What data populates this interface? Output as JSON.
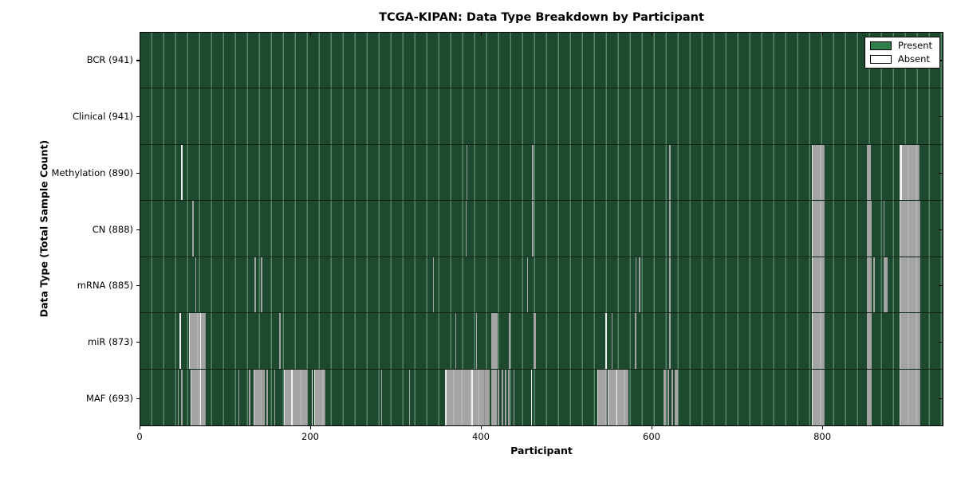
{
  "chart_data": {
    "type": "heatmap",
    "title": "TCGA-KIPAN: Data Type Breakdown by Participant",
    "xlabel": "Participant",
    "ylabel": "Data Type (Total Sample Count)",
    "x_axis": {
      "min": 0,
      "max": 942,
      "ticks": [
        0,
        200,
        400,
        600,
        800
      ]
    },
    "legend": {
      "position": "upper right",
      "entries": [
        {
          "label": "Present",
          "color": "#2e7d4a"
        },
        {
          "label": "Absent",
          "color": "#ffffff"
        }
      ]
    },
    "colors": {
      "present_fill": "#1d4a2e",
      "present_gridline": "#a5d6b6",
      "absent_gray": "#a7a7a7",
      "absent_white": "#f0f0f0",
      "axis": "#000000",
      "figure_background": "#ffffff"
    },
    "rows": [
      {
        "label": "BCR (941)",
        "data_type": "BCR",
        "sample_count": 941,
        "absent_ranges": []
      },
      {
        "label": "Clinical (941)",
        "data_type": "Clinical",
        "sample_count": 941,
        "absent_ranges": []
      },
      {
        "label": "Methylation (890)",
        "data_type": "Methylation",
        "sample_count": 890,
        "absent_ranges": [
          {
            "start": 48,
            "end": 50,
            "shade": "white"
          },
          {
            "start": 382,
            "end": 383,
            "shade": "gray"
          },
          {
            "start": 459,
            "end": 460,
            "shade": "gray"
          },
          {
            "start": 620,
            "end": 621,
            "shade": "gray"
          },
          {
            "start": 787,
            "end": 800,
            "shade": "gray"
          },
          {
            "start": 851,
            "end": 856,
            "shade": "gray"
          },
          {
            "start": 890,
            "end": 911,
            "shade": "gray"
          },
          {
            "start": 891,
            "end": 892,
            "shade": "white"
          }
        ]
      },
      {
        "label": "CN (888)",
        "data_type": "CN",
        "sample_count": 888,
        "absent_ranges": [
          {
            "start": 61,
            "end": 63,
            "shade": "gray"
          },
          {
            "start": 381,
            "end": 382,
            "shade": "gray"
          },
          {
            "start": 459,
            "end": 461,
            "shade": "gray"
          },
          {
            "start": 620,
            "end": 621,
            "shade": "gray"
          },
          {
            "start": 787,
            "end": 800,
            "shade": "gray"
          },
          {
            "start": 851,
            "end": 857,
            "shade": "gray"
          },
          {
            "start": 871,
            "end": 872,
            "shade": "gray"
          },
          {
            "start": 890,
            "end": 912,
            "shade": "gray"
          }
        ]
      },
      {
        "label": "mRNA (885)",
        "data_type": "mRNA",
        "sample_count": 885,
        "absent_ranges": [
          {
            "start": 64,
            "end": 65,
            "shade": "gray"
          },
          {
            "start": 134,
            "end": 136,
            "shade": "gray"
          },
          {
            "start": 141,
            "end": 143,
            "shade": "gray"
          },
          {
            "start": 343,
            "end": 344,
            "shade": "gray"
          },
          {
            "start": 453,
            "end": 454,
            "shade": "gray"
          },
          {
            "start": 580,
            "end": 581,
            "shade": "gray"
          },
          {
            "start": 584,
            "end": 586,
            "shade": "gray"
          },
          {
            "start": 620,
            "end": 621,
            "shade": "gray"
          },
          {
            "start": 787,
            "end": 800,
            "shade": "gray"
          },
          {
            "start": 851,
            "end": 857,
            "shade": "gray"
          },
          {
            "start": 859,
            "end": 860,
            "shade": "gray"
          },
          {
            "start": 871,
            "end": 876,
            "shade": "gray"
          },
          {
            "start": 890,
            "end": 912,
            "shade": "gray"
          }
        ]
      },
      {
        "label": "miR (873)",
        "data_type": "miR",
        "sample_count": 873,
        "absent_ranges": [
          {
            "start": 46,
            "end": 48,
            "shade": "white"
          },
          {
            "start": 57,
            "end": 75,
            "shade": "gray"
          },
          {
            "start": 70,
            "end": 71,
            "shade": "white"
          },
          {
            "start": 163,
            "end": 165,
            "shade": "gray"
          },
          {
            "start": 369,
            "end": 370,
            "shade": "gray"
          },
          {
            "start": 393,
            "end": 394,
            "shade": "gray"
          },
          {
            "start": 411,
            "end": 419,
            "shade": "gray"
          },
          {
            "start": 432,
            "end": 434,
            "shade": "gray"
          },
          {
            "start": 461,
            "end": 464,
            "shade": "gray"
          },
          {
            "start": 545,
            "end": 547,
            "shade": "white"
          },
          {
            "start": 552,
            "end": 553,
            "shade": "gray"
          },
          {
            "start": 579,
            "end": 581,
            "shade": "gray"
          },
          {
            "start": 620,
            "end": 621,
            "shade": "gray"
          },
          {
            "start": 787,
            "end": 800,
            "shade": "gray"
          },
          {
            "start": 851,
            "end": 857,
            "shade": "gray"
          },
          {
            "start": 890,
            "end": 912,
            "shade": "gray"
          }
        ]
      },
      {
        "label": "MAF (693)",
        "data_type": "MAF",
        "sample_count": 693,
        "absent_ranges": [
          {
            "start": 44,
            "end": 45,
            "shade": "gray"
          },
          {
            "start": 48,
            "end": 50,
            "shade": "gray"
          },
          {
            "start": 59,
            "end": 75,
            "shade": "gray"
          },
          {
            "start": 70,
            "end": 71,
            "shade": "white"
          },
          {
            "start": 115,
            "end": 116,
            "shade": "gray"
          },
          {
            "start": 127,
            "end": 129,
            "shade": "gray"
          },
          {
            "start": 133,
            "end": 142,
            "shade": "gray"
          },
          {
            "start": 144,
            "end": 146,
            "shade": "gray"
          },
          {
            "start": 148,
            "end": 150,
            "shade": "gray"
          },
          {
            "start": 157,
            "end": 158,
            "shade": "gray"
          },
          {
            "start": 168,
            "end": 194,
            "shade": "gray"
          },
          {
            "start": 177,
            "end": 178,
            "shade": "white"
          },
          {
            "start": 201,
            "end": 202,
            "shade": "white"
          },
          {
            "start": 204,
            "end": 215,
            "shade": "gray"
          },
          {
            "start": 282,
            "end": 283,
            "shade": "gray"
          },
          {
            "start": 315,
            "end": 316,
            "shade": "gray"
          },
          {
            "start": 357,
            "end": 402,
            "shade": "gray"
          },
          {
            "start": 358,
            "end": 359,
            "shade": "white"
          },
          {
            "start": 388,
            "end": 389,
            "shade": "white"
          },
          {
            "start": 404,
            "end": 409,
            "shade": "gray"
          },
          {
            "start": 411,
            "end": 418,
            "shade": "gray"
          },
          {
            "start": 419,
            "end": 421,
            "shade": "gray"
          },
          {
            "start": 423,
            "end": 425,
            "shade": "gray"
          },
          {
            "start": 427,
            "end": 429,
            "shade": "gray"
          },
          {
            "start": 431,
            "end": 432,
            "shade": "gray"
          },
          {
            "start": 437,
            "end": 438,
            "shade": "gray"
          },
          {
            "start": 458,
            "end": 459,
            "shade": "white"
          },
          {
            "start": 535,
            "end": 545,
            "shade": "gray"
          },
          {
            "start": 548,
            "end": 570,
            "shade": "gray"
          },
          {
            "start": 558,
            "end": 559,
            "shade": "white"
          },
          {
            "start": 613,
            "end": 616,
            "shade": "gray"
          },
          {
            "start": 618,
            "end": 620,
            "shade": "gray"
          },
          {
            "start": 622,
            "end": 624,
            "shade": "gray"
          },
          {
            "start": 626,
            "end": 630,
            "shade": "gray"
          },
          {
            "start": 787,
            "end": 800,
            "shade": "gray"
          },
          {
            "start": 851,
            "end": 857,
            "shade": "gray"
          },
          {
            "start": 890,
            "end": 912,
            "shade": "gray"
          }
        ]
      }
    ]
  }
}
